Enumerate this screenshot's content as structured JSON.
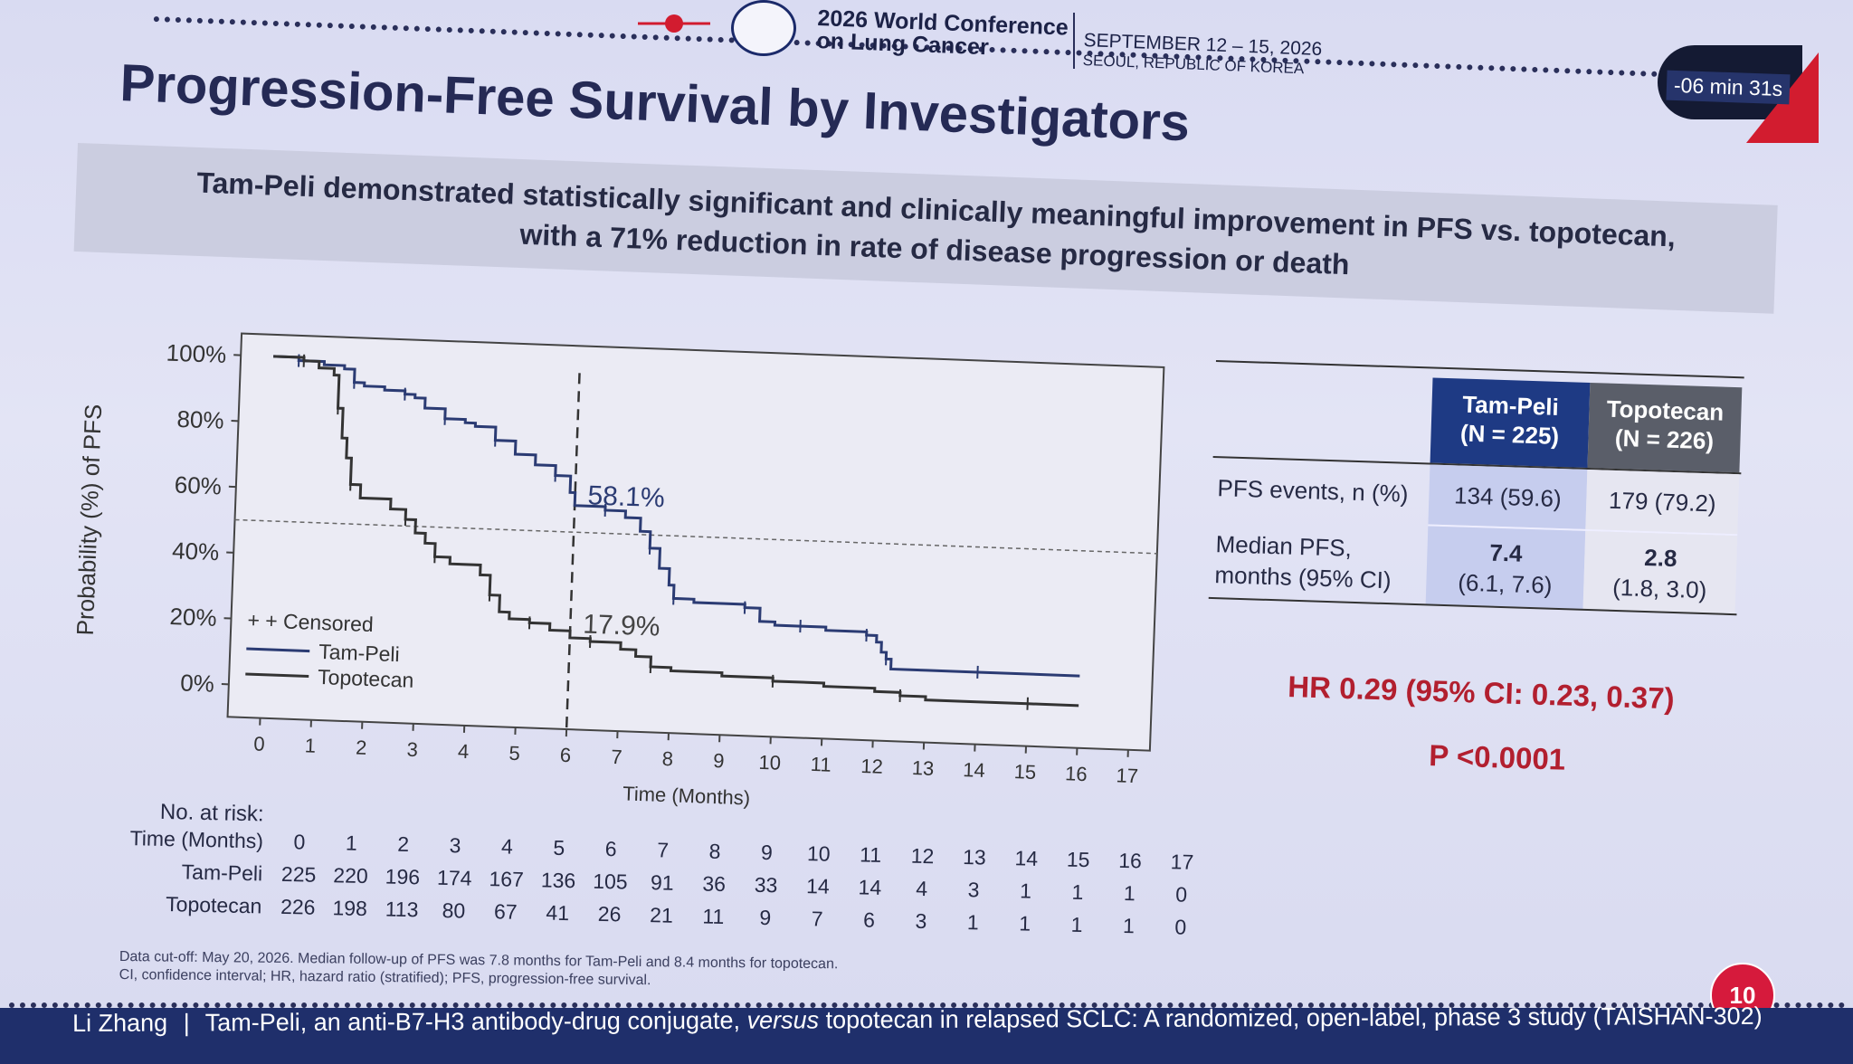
{
  "header": {
    "conference": "2026 World Conference\non Lung Cancer",
    "dates": "SEPTEMBER 12 – 15, 2026",
    "location": "SEOUL, REPUBLIC OF KOREA",
    "timer": "-06 min 31s"
  },
  "slide": {
    "title": "Progression-Free Survival by Investigators",
    "subtitle_line1": "Tam-Peli demonstrated statistically significant and clinically meaningful improvement in PFS vs. topotecan,",
    "subtitle_line2": "with a 71% reduction in rate of disease progression or death",
    "page_number": "10"
  },
  "chart_data": {
    "type": "line",
    "ylabel": "Probability (%) of PFS",
    "xlabel": "Time (Months)",
    "x_ticks": [
      "0",
      "1",
      "2",
      "3",
      "4",
      "5",
      "6",
      "7",
      "8",
      "9",
      "10",
      "11",
      "12",
      "13",
      "14",
      "15",
      "16",
      "17"
    ],
    "y_ticks": [
      "0%",
      "20%",
      "40%",
      "60%",
      "80%",
      "100%"
    ],
    "xlim": [
      0,
      17
    ],
    "ylim": [
      0,
      100
    ],
    "reference_x": 6,
    "reference_y": 50,
    "annotations": {
      "tam_peli_at_6": "58.1%",
      "topotecan_at_6": "17.9%"
    },
    "legend": {
      "censored": "+ + Censored",
      "tam_peli": "Tam-Peli",
      "topotecan": "Topotecan"
    },
    "series": [
      {
        "name": "Tam-Peli",
        "color": "#2b3b73",
        "points": [
          [
            0,
            100
          ],
          [
            0.5,
            99
          ],
          [
            1,
            98
          ],
          [
            1.4,
            97
          ],
          [
            1.6,
            93
          ],
          [
            1.8,
            92
          ],
          [
            2.2,
            91
          ],
          [
            2.6,
            90
          ],
          [
            2.8,
            89
          ],
          [
            3,
            86
          ],
          [
            3.4,
            83
          ],
          [
            3.8,
            82
          ],
          [
            4,
            81
          ],
          [
            4.4,
            77
          ],
          [
            4.8,
            73
          ],
          [
            5.2,
            70
          ],
          [
            5.6,
            67
          ],
          [
            5.9,
            62
          ],
          [
            6,
            58.1
          ],
          [
            6.6,
            57
          ],
          [
            7,
            55
          ],
          [
            7.3,
            51
          ],
          [
            7.5,
            46
          ],
          [
            7.7,
            40
          ],
          [
            7.9,
            35
          ],
          [
            8,
            31
          ],
          [
            8.4,
            30
          ],
          [
            9,
            30
          ],
          [
            9.4,
            29
          ],
          [
            9.7,
            25
          ],
          [
            10,
            24
          ],
          [
            10.5,
            24
          ],
          [
            11,
            23
          ],
          [
            11.5,
            23
          ],
          [
            11.8,
            22
          ],
          [
            12,
            20
          ],
          [
            12.1,
            17
          ],
          [
            12.2,
            15
          ],
          [
            12.3,
            12
          ],
          [
            13,
            12
          ],
          [
            14,
            12
          ],
          [
            15,
            12
          ],
          [
            16,
            12
          ]
        ]
      },
      {
        "name": "Topotecan",
        "color": "#333333",
        "points": [
          [
            0,
            100
          ],
          [
            0.6,
            99
          ],
          [
            0.9,
            97
          ],
          [
            1.2,
            95
          ],
          [
            1.3,
            85
          ],
          [
            1.4,
            76
          ],
          [
            1.5,
            70
          ],
          [
            1.6,
            62
          ],
          [
            1.8,
            58
          ],
          [
            2.4,
            55
          ],
          [
            2.7,
            52
          ],
          [
            2.9,
            48
          ],
          [
            3.1,
            45
          ],
          [
            3.3,
            41
          ],
          [
            3.6,
            39
          ],
          [
            4.2,
            36
          ],
          [
            4.4,
            30
          ],
          [
            4.6,
            25
          ],
          [
            4.8,
            23
          ],
          [
            5.2,
            22
          ],
          [
            5.6,
            20
          ],
          [
            6,
            17.9
          ],
          [
            6.4,
            17
          ],
          [
            7,
            15
          ],
          [
            7.3,
            13
          ],
          [
            7.6,
            10
          ],
          [
            8,
            9
          ],
          [
            9,
            8
          ],
          [
            10,
            7
          ],
          [
            11,
            6
          ],
          [
            12,
            5
          ],
          [
            12.5,
            4
          ],
          [
            13,
            3
          ],
          [
            14,
            3
          ],
          [
            15,
            3
          ],
          [
            16,
            3
          ]
        ]
      }
    ]
  },
  "risk_table": {
    "title": "No. at risk:",
    "time_label": "Time (Months)",
    "times": [
      "0",
      "1",
      "2",
      "3",
      "4",
      "5",
      "6",
      "7",
      "8",
      "9",
      "10",
      "11",
      "12",
      "13",
      "14",
      "15",
      "16",
      "17"
    ],
    "rows": [
      {
        "label": "Tam-Peli",
        "values": [
          "225",
          "220",
          "196",
          "174",
          "167",
          "136",
          "105",
          "91",
          "36",
          "33",
          "14",
          "14",
          "4",
          "3",
          "1",
          "1",
          "1",
          "0"
        ]
      },
      {
        "label": "Topotecan",
        "values": [
          "226",
          "198",
          "113",
          "80",
          "67",
          "41",
          "26",
          "21",
          "11",
          "9",
          "7",
          "6",
          "3",
          "1",
          "1",
          "1",
          "1",
          "0"
        ]
      }
    ]
  },
  "summary_table": {
    "col_tp_name": "Tam-Peli",
    "col_tp_n": "(N = 225)",
    "col_to_name": "Topotecan",
    "col_to_n": "(N = 226)",
    "row1_label": "PFS events, n (%)",
    "row1_tp": "134 (59.6)",
    "row1_to": "179 (79.2)",
    "row2_label_a": "Median PFS,",
    "row2_label_b": "months (95% CI)",
    "row2_tp_main": "7.4",
    "row2_tp_ci": "(6.1, 7.6)",
    "row2_to_main": "2.8",
    "row2_to_ci": "(1.8, 3.0)"
  },
  "stats": {
    "hr": "HR 0.29 (95% CI: 0.23, 0.37)",
    "p": "P <0.0001"
  },
  "footnote": {
    "line1": "Data cut-off: May 20, 2026. Median follow-up of PFS was 7.8 months for Tam-Peli and 8.4 months for topotecan.",
    "line2": "CI, confidence interval; HR, hazard ratio (stratified); PFS, progression-free survival."
  },
  "footer": {
    "presenter": "Li Zhang",
    "separator": "|",
    "text_pre": "Tam-Peli, an anti-B7-H3 antibody-drug conjugate,",
    "text_italic": "versus",
    "text_post": "topotecan in relapsed SCLC: A randomized, open-label, phase 3 study (TAISHAN-302)"
  }
}
